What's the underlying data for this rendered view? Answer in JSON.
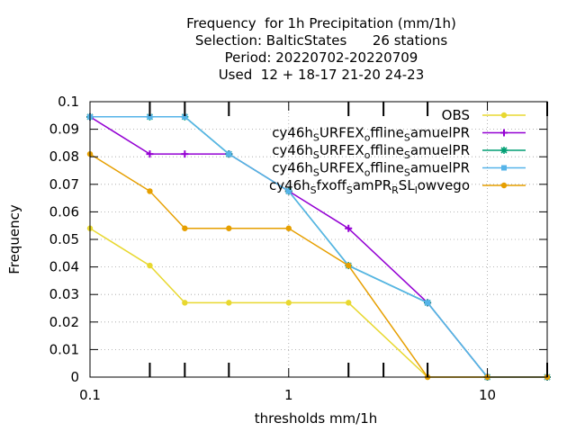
{
  "chart_data": {
    "type": "line",
    "title_lines": [
      "Frequency  for 1h Precipitation (mm/1h)",
      "Selection: BalticStates      26 stations",
      "Period: 20220702-20220709",
      "Used  12 + 18-17 21-20 24-23"
    ],
    "xlabel": "thresholds mm/1h",
    "ylabel": "Frequency",
    "x_scale": "log",
    "xlim": [
      0.1,
      20
    ],
    "ylim": [
      0,
      0.1
    ],
    "x_tick_labels": [
      {
        "value": 0.1,
        "label": "0.1"
      },
      {
        "value": 1,
        "label": "1"
      },
      {
        "value": 10,
        "label": "10"
      }
    ],
    "x_minor_ticks": [
      0.2,
      0.3,
      0.5,
      2,
      3,
      5,
      20
    ],
    "y_ticks": [
      0,
      0.01,
      0.02,
      0.03,
      0.04,
      0.05,
      0.06,
      0.07,
      0.08,
      0.09,
      0.1
    ],
    "y_tick_labels": [
      "0",
      "0.01",
      "0.02",
      "0.03",
      "0.04",
      "0.05",
      "0.06",
      "0.07",
      "0.08",
      "0.09",
      "0.1"
    ],
    "grid": true,
    "legend_position": "top-right",
    "x": [
      0.1,
      0.2,
      0.3,
      0.5,
      1,
      2,
      5,
      10,
      20
    ],
    "series": [
      {
        "name": "OBS",
        "color": "#e8d830",
        "marker": "circle",
        "values": [
          0.054,
          0.0405,
          0.027,
          0.027,
          0.027,
          0.027,
          0,
          0,
          0
        ]
      },
      {
        "name": "cy46h_S URFEX_o ffline_S amuelPR",
        "legend_parts": [
          "cy46h",
          "S",
          "URFEX",
          "o",
          "ffline",
          "S",
          "amuelPR"
        ],
        "color": "#9400d3",
        "marker": "plus",
        "values": [
          0.0945,
          0.081,
          0.081,
          0.081,
          0.0675,
          0.054,
          0.027,
          0,
          0
        ]
      },
      {
        "name": "cy46h_S URFEX_o ffline_S amuelPR",
        "legend_parts": [
          "cy46h",
          "S",
          "URFEX",
          "o",
          "ffline",
          "S",
          "amuelPR"
        ],
        "color": "#009e73",
        "marker": "star",
        "values": [
          0.0945,
          0.0945,
          0.0945,
          0.081,
          0.0675,
          0.0405,
          0.027,
          0,
          0
        ]
      },
      {
        "name": "cy46h_S URFEX_o ffline_S amuelPR",
        "legend_parts": [
          "cy46h",
          "S",
          "URFEX",
          "o",
          "ffline",
          "S",
          "amuelPR"
        ],
        "color": "#56b4e9",
        "marker": "box",
        "values": [
          0.0945,
          0.0945,
          0.0945,
          0.081,
          0.0675,
          0.0405,
          0.027,
          0,
          0
        ]
      },
      {
        "name": "cy46h_S fxoff_S amPR_R SL_l owvego",
        "legend_parts": [
          "cy46h",
          "S",
          "fxoff",
          "S",
          "amPR",
          "R",
          "SL",
          "l",
          "owvego"
        ],
        "color": "#e69f00",
        "marker": "circle",
        "values": [
          0.081,
          0.0675,
          0.054,
          0.054,
          0.054,
          0.0405,
          0,
          0,
          0
        ]
      }
    ]
  }
}
